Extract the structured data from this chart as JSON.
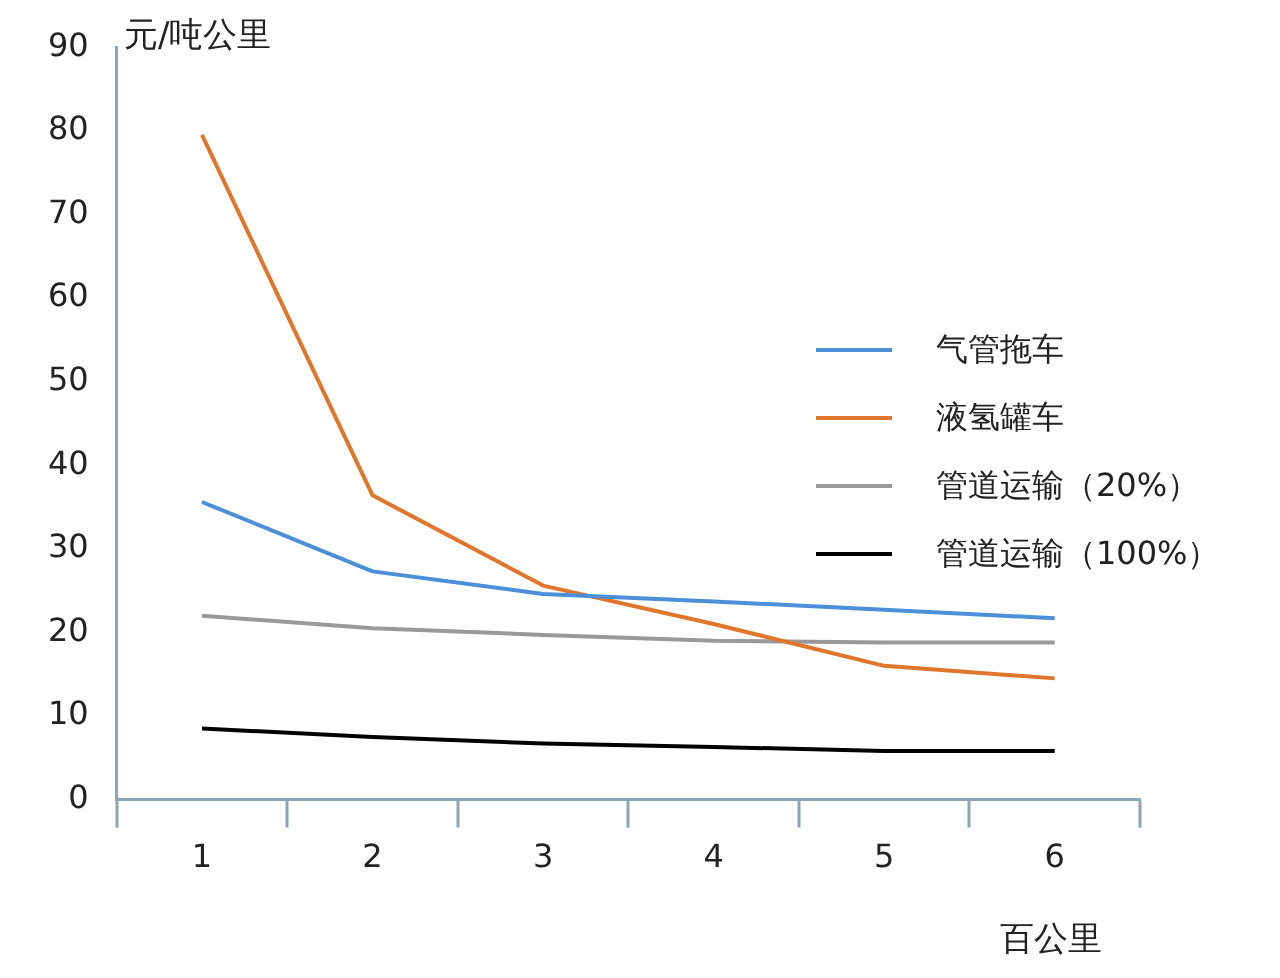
{
  "chart_data": {
    "type": "line",
    "ylabel": "元/吨公里",
    "xlabel": "百公里",
    "categories": [
      "1",
      "2",
      "3",
      "4",
      "5",
      "6"
    ],
    "series": [
      {
        "name": "气管拖车",
        "color": "#4a8fd8",
        "values": [
          35.6,
          27.3,
          24.6,
          23.7,
          22.7,
          21.7
        ]
      },
      {
        "name": "液氢罐车",
        "color": "#e0752c",
        "values": [
          79.5,
          36.4,
          25.6,
          21,
          16,
          14.5
        ]
      },
      {
        "name": "管道运输（20%）",
        "color": "#999999",
        "values": [
          22,
          20.5,
          19.7,
          19,
          18.8,
          18.8
        ]
      },
      {
        "name": "管道运输（100%）",
        "color": "#000000",
        "values": [
          8.5,
          7.5,
          6.7,
          6.3,
          5.8,
          5.8
        ]
      }
    ],
    "ylim": [
      0,
      90
    ],
    "yticks": [
      0,
      10,
      20,
      30,
      40,
      50,
      60,
      70,
      80,
      90
    ],
    "grid": false,
    "legend": "right",
    "marker": "none",
    "line_style": "solid"
  }
}
